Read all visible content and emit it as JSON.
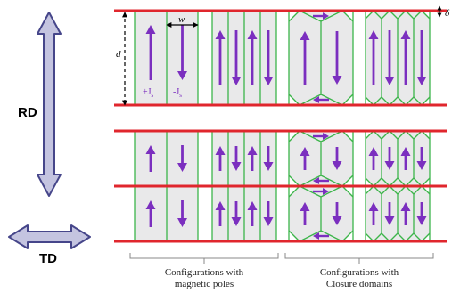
{
  "labels": {
    "rd": "RD",
    "td": "TD",
    "w": "w",
    "d": "d",
    "delta": "δ",
    "plus_js": "+J",
    "minus_js": "-J",
    "sub_s": "s"
  },
  "captions": {
    "poles_line1": "Configurations with",
    "poles_line2": "magnetic poles",
    "closure_line1": "Configurations with",
    "closure_line2": "Closure domains"
  },
  "colors": {
    "strip": "#e0262d",
    "domain_wall": "#3cb54a",
    "arrow": "#7b2fbf",
    "fill": "#e9e9ea",
    "direction_arrow_fill": "#c4c4e0",
    "direction_arrow_stroke": "#46468a"
  },
  "icons": [
    "double-arrow-rd-icon",
    "double-arrow-td-icon",
    "up-arrow-icon",
    "down-arrow-icon",
    "left-arrow-icon",
    "right-arrow-icon"
  ]
}
